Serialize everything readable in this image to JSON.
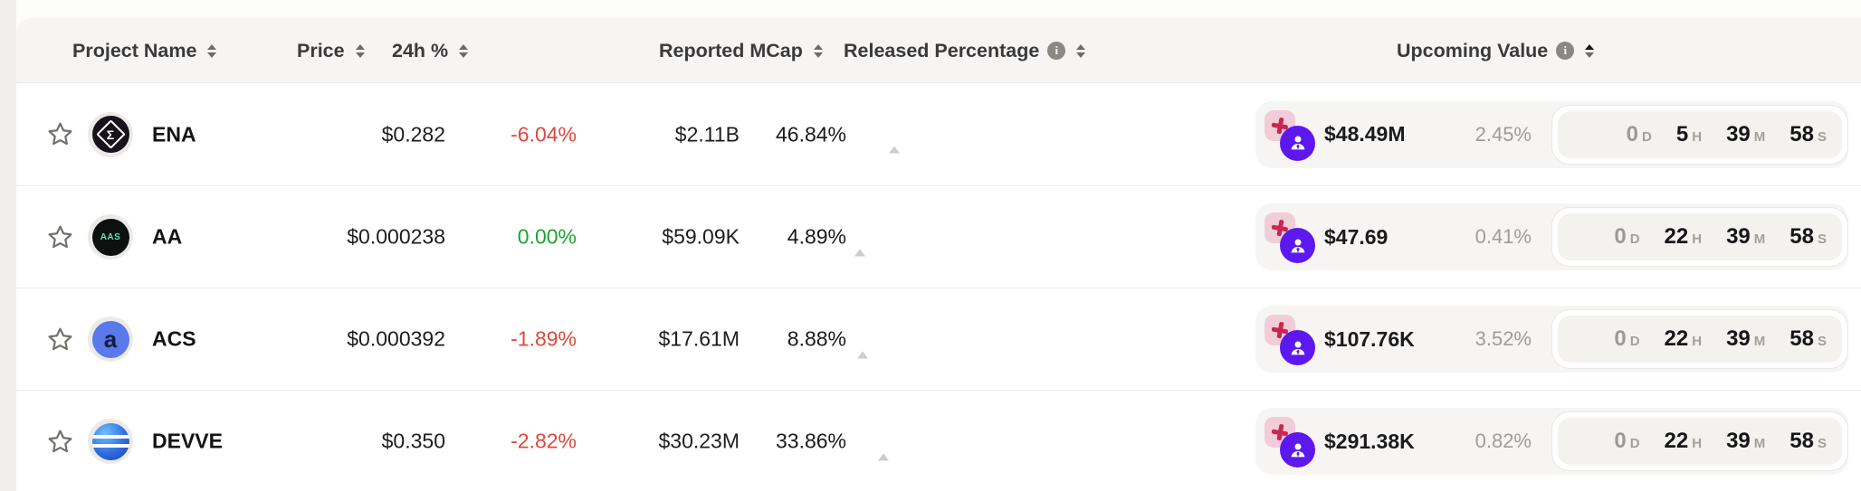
{
  "table_name": "token-unlocks-table",
  "header": {
    "columns": [
      {
        "label": "Project Name",
        "sortable": true
      },
      {
        "label": "Price",
        "sortable": true
      },
      {
        "label": "24h %",
        "sortable": true
      },
      {
        "label": "Reported MCap",
        "sortable": true
      },
      {
        "label": "Released Percentage",
        "info": true,
        "sortable": true
      },
      {
        "label": "Upcoming Value",
        "info": true,
        "sortable": true,
        "sort_active": "asc"
      }
    ],
    "info_icon_glyph": "i"
  },
  "colors": {
    "negative_change": "#e0483c",
    "positive_change": "#1ba32e",
    "progress_fill": "#2da32d",
    "progress_track": "#d9d6d3",
    "person_badge": "#5d17ef",
    "cross_badge_bg": "#f2ccd9",
    "cross_badge_glyph": "#cb2552",
    "header_bg": "#f6f5f3",
    "countdown_inner_bg": "#f3f2ef"
  },
  "rows": [
    {
      "symbol": "ENA",
      "logo_style": "ena",
      "logo_label": "Σ",
      "price": "$0.282",
      "change_24h": "-6.04%",
      "change_dir": "down",
      "mcap": "$2.11B",
      "released_pct": "46.84%",
      "released_value": 46.84,
      "upcoming_value": "$48.49M",
      "upcoming_pct": "2.45%",
      "countdown": [
        {
          "v": "0",
          "u": "D",
          "muted": true
        },
        {
          "v": "5",
          "u": "H"
        },
        {
          "v": "39",
          "u": "M"
        },
        {
          "v": "58",
          "u": "S"
        }
      ]
    },
    {
      "symbol": "AA",
      "logo_style": "aa",
      "logo_label": "AAS",
      "price": "$0.000238",
      "change_24h": "0.00%",
      "change_dir": "up",
      "mcap": "$59.09K",
      "released_pct": "4.89%",
      "released_value": 4.89,
      "upcoming_value": "$47.69",
      "upcoming_pct": "0.41%",
      "countdown": [
        {
          "v": "0",
          "u": "D",
          "muted": true
        },
        {
          "v": "22",
          "u": "H"
        },
        {
          "v": "39",
          "u": "M"
        },
        {
          "v": "58",
          "u": "S"
        }
      ]
    },
    {
      "symbol": "ACS",
      "logo_style": "acs",
      "logo_label": "a",
      "price": "$0.000392",
      "change_24h": "-1.89%",
      "change_dir": "down",
      "mcap": "$17.61M",
      "released_pct": "8.88%",
      "released_value": 8.88,
      "upcoming_value": "$107.76K",
      "upcoming_pct": "3.52%",
      "countdown": [
        {
          "v": "0",
          "u": "D",
          "muted": true
        },
        {
          "v": "22",
          "u": "H"
        },
        {
          "v": "39",
          "u": "M"
        },
        {
          "v": "58",
          "u": "S"
        }
      ]
    },
    {
      "symbol": "DEVVE",
      "logo_style": "devve",
      "logo_label": "",
      "price": "$0.350",
      "change_24h": "-2.82%",
      "change_dir": "down",
      "mcap": "$30.23M",
      "released_pct": "33.86%",
      "released_value": 33.86,
      "upcoming_value": "$291.38K",
      "upcoming_pct": "0.82%",
      "countdown": [
        {
          "v": "0",
          "u": "D",
          "muted": true
        },
        {
          "v": "22",
          "u": "H"
        },
        {
          "v": "39",
          "u": "M"
        },
        {
          "v": "58",
          "u": "S"
        }
      ]
    }
  ]
}
